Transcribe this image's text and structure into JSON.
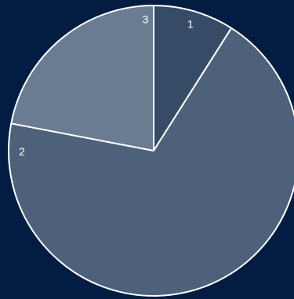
{
  "chart_data": {
    "type": "pie",
    "categories": [
      "1",
      "2",
      "3"
    ],
    "values": [
      9,
      69,
      22
    ],
    "colors": [
      "#364b66",
      "#4e617a",
      "#6a7c91"
    ],
    "background": "#021d41",
    "edge_color": "#ffffff",
    "start_angle_deg": 90,
    "direction": "clockwise",
    "legend": "none"
  }
}
